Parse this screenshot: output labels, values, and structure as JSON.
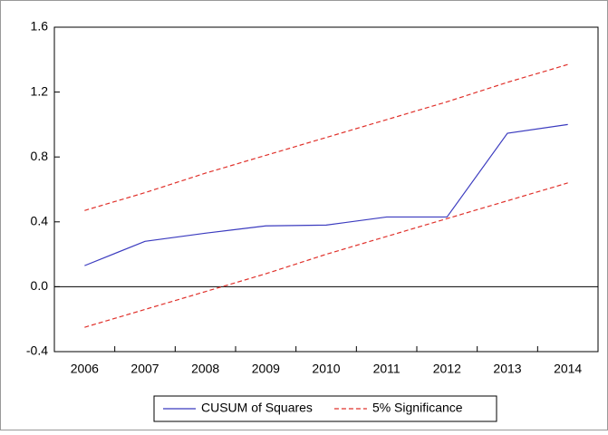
{
  "chart_data": {
    "type": "line",
    "categories": [
      "2006",
      "2007",
      "2008",
      "2009",
      "2010",
      "2011",
      "2012",
      "2013",
      "2014"
    ],
    "series": [
      {
        "name": "CUSUM of Squares",
        "color": "#3b3bbf",
        "style": "solid",
        "values": [
          0.13,
          0.28,
          0.33,
          0.375,
          0.38,
          0.43,
          0.43,
          0.946,
          1.0
        ]
      },
      {
        "name": "5% Significance",
        "color": "#e0312b",
        "style": "dashed",
        "values": [
          0.47,
          0.58,
          0.7,
          0.81,
          0.92,
          1.03,
          1.14,
          1.26,
          1.37
        ],
        "lower": [
          -0.25,
          -0.14,
          -0.03,
          0.08,
          0.2,
          0.31,
          0.42,
          0.53,
          0.64
        ]
      }
    ],
    "ylim": [
      -0.4,
      1.6
    ],
    "yticks": [
      -0.4,
      {
        "value": 0,
        "label": "0.0"
      },
      0.4,
      0.8,
      1.2,
      1.6
    ],
    "zero_line": true,
    "legend": "bottom"
  }
}
